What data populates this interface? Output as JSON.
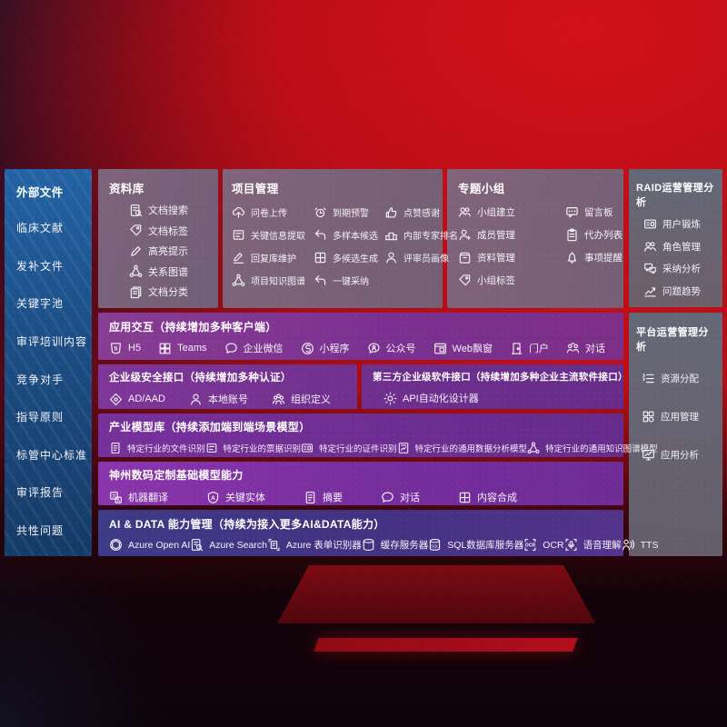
{
  "colors": {
    "background_red": "#c40f18",
    "background_dark": "#120309",
    "sidebar_blue_top": "#2263a5",
    "sidebar_blue_bottom": "#143a66",
    "panel_mauve": "#756779",
    "panel_slate": "#606b7b",
    "row_purple": "#7a3090",
    "row_violet": "#8a35ab",
    "row_indigo": "#3d3a86",
    "text_white": "#ffffff"
  },
  "sidebar": {
    "title": "外部文件",
    "items": [
      {
        "label": "临床文献"
      },
      {
        "label": "发补文件"
      },
      {
        "label": "关键字池"
      },
      {
        "label": "审评培训内容"
      },
      {
        "label": "竞争对手"
      },
      {
        "label": "指导原则"
      },
      {
        "label": "标管中心标准"
      },
      {
        "label": "审评报告"
      },
      {
        "label": "共性问题"
      }
    ]
  },
  "panels": {
    "library": {
      "title": "资料库",
      "items": [
        {
          "label": "文档搜索",
          "icon": "doc-search"
        },
        {
          "label": "文档标签",
          "icon": "tag"
        },
        {
          "label": "高亮提示",
          "icon": "highlight-pen"
        },
        {
          "label": "关系图谱",
          "icon": "relation-graph"
        },
        {
          "label": "文档分类",
          "icon": "doc-classify"
        }
      ]
    },
    "project": {
      "title": "项目管理",
      "items": [
        {
          "label": "问卷上传",
          "icon": "cloud-upload"
        },
        {
          "label": "到期预警",
          "icon": "alarm"
        },
        {
          "label": "点赞感谢",
          "icon": "thumb-up"
        },
        {
          "label": "关键信息提取",
          "icon": "info-extract"
        },
        {
          "label": "多样本候选",
          "icon": "reply-arrow"
        },
        {
          "label": "内部专家排名",
          "icon": "ranking"
        },
        {
          "label": "回复库维护",
          "icon": "pen-edit"
        },
        {
          "label": "多候选生成",
          "icon": "generate-grid"
        },
        {
          "label": "评审员画像",
          "icon": "person"
        },
        {
          "label": "项目知识图谱",
          "icon": "knowledge-graph"
        },
        {
          "label": "一键采纳",
          "icon": "adopt-arrow"
        }
      ]
    },
    "topics": {
      "title": "专题小组",
      "items": [
        {
          "label": "小组建立",
          "icon": "people"
        },
        {
          "label": "留言板",
          "icon": "bbs-board"
        },
        {
          "label": "成员管理",
          "icon": "member-add"
        },
        {
          "label": "代办列表",
          "icon": "todo-clipboard"
        },
        {
          "label": "资料管理",
          "icon": "archive-box"
        },
        {
          "label": "事项提醒",
          "icon": "bell"
        },
        {
          "label": "小组标签",
          "icon": "tag"
        }
      ]
    },
    "raid": {
      "title": "RAID运营管理分析",
      "items": [
        {
          "label": "用户锻炼",
          "icon": "id-card"
        },
        {
          "label": "角色管理",
          "icon": "people"
        },
        {
          "label": "采纳分析",
          "icon": "chat-qa"
        },
        {
          "label": "问题趋势",
          "icon": "trend-chart"
        }
      ]
    },
    "platform": {
      "title": "平台运营管理分析",
      "items": [
        {
          "label": "资源分配",
          "icon": "list-settings"
        },
        {
          "label": "应用管理",
          "icon": "apps-grid"
        },
        {
          "label": "应用分析",
          "icon": "app-analysis"
        }
      ]
    }
  },
  "rows": {
    "interaction": {
      "title": "应用交互（持续增加多种客户端）",
      "items": [
        {
          "label": "H5",
          "icon": "h5-badge"
        },
        {
          "label": "Teams",
          "icon": "teams"
        },
        {
          "label": "企业微信",
          "icon": "wechat-work"
        },
        {
          "label": "小程序",
          "icon": "miniprogram"
        },
        {
          "label": "公众号",
          "icon": "official-account"
        },
        {
          "label": "Web飘窗",
          "icon": "web-window"
        },
        {
          "label": "门户",
          "icon": "portal-person"
        },
        {
          "label": "对话",
          "icon": "dialog-people"
        }
      ]
    },
    "security": {
      "title": "企业级安全接口（持续增加多种认证）",
      "items": [
        {
          "label": "AD/AAD",
          "icon": "shield-diamond"
        },
        {
          "label": "本地账号",
          "icon": "local-account"
        },
        {
          "label": "组织定义",
          "icon": "org-people"
        }
      ]
    },
    "thirdparty": {
      "title": "第三方企业级软件接口（持续增加多种企业主流软件接口）",
      "items": [
        {
          "label": "API自动化设计器",
          "icon": "api-gear"
        }
      ]
    },
    "models": {
      "title": "产业模型库（持续添加端到端场景模型）",
      "items": [
        {
          "label": "特定行业的文件识别",
          "icon": "doc-recognize"
        },
        {
          "label": "特定行业的票据识别",
          "icon": "invoice-recognize"
        },
        {
          "label": "特定行业的证件识别",
          "icon": "id-card"
        },
        {
          "label": "特定行业的通用数据分析模型",
          "icon": "data-analysis"
        },
        {
          "label": "特定行业的通用知识图谱模型",
          "icon": "knowledge-graph"
        }
      ]
    },
    "foundation": {
      "title": "神州数码定制基础模型能力",
      "items": [
        {
          "label": "机器翻译",
          "icon": "translate"
        },
        {
          "label": "关键实体",
          "icon": "entity-shield"
        },
        {
          "label": "摘要",
          "icon": "summary-doc"
        },
        {
          "label": "对话",
          "icon": "chat-bubble"
        },
        {
          "label": "内容合成",
          "icon": "compose-grid"
        }
      ]
    },
    "aidata": {
      "title": "AI & DATA 能力管理（持续为接入更多AI&DATA能力）",
      "items": [
        {
          "label": "Azure Open AI",
          "icon": "openai"
        },
        {
          "label": "Azure Search",
          "icon": "azure-search"
        },
        {
          "label": "Azure 表单识别器",
          "icon": "form-recognizer"
        },
        {
          "label": "缓存服务器",
          "icon": "cache-server"
        },
        {
          "label": "SQL数据库服务器",
          "icon": "sql-server"
        },
        {
          "label": "OCR",
          "icon": "ocr"
        },
        {
          "label": "语音理解",
          "icon": "speech-understand"
        },
        {
          "label": "TTS",
          "icon": "tts-voice"
        }
      ]
    }
  }
}
